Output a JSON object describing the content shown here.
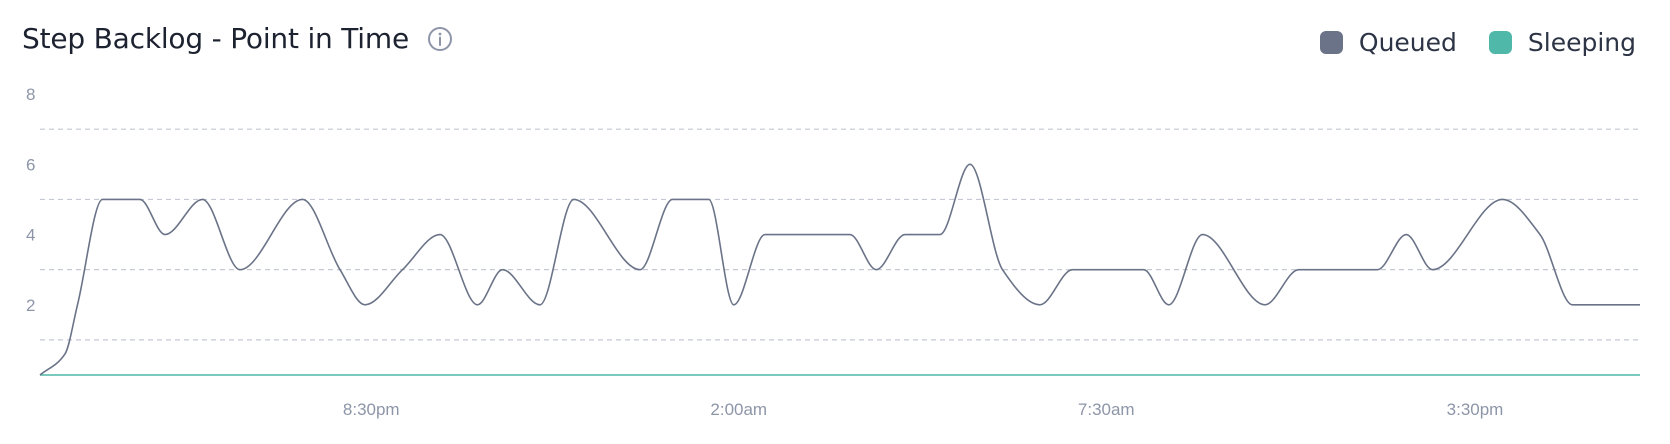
{
  "header": {
    "title": "Step Backlog - Point in Time",
    "info_icon": "info-icon"
  },
  "legend": [
    {
      "label": "Queued",
      "color": "#6a7387"
    },
    {
      "label": "Sleeping",
      "color": "#4fb8a8"
    }
  ],
  "chart_data": {
    "type": "line",
    "title": "Step Backlog - Point in Time",
    "xlabel": "",
    "ylabel": "",
    "ylim": [
      0,
      8.8
    ],
    "xlim": [
      0,
      128
    ],
    "y_ticks": [
      2,
      4,
      6,
      8
    ],
    "x_ticks": [
      {
        "x": 26.5,
        "label": "8:30pm"
      },
      {
        "x": 55.9,
        "label": "2:00am"
      },
      {
        "x": 85.3,
        "label": "7:30am"
      },
      {
        "x": 114.8,
        "label": "3:30pm"
      }
    ],
    "grid": true,
    "legend_position": "top-right",
    "series": [
      {
        "name": "Queued",
        "color": "#6a7387",
        "points": [
          [
            0,
            0
          ],
          [
            2,
            0.6
          ],
          [
            3,
            2
          ],
          [
            5,
            5
          ],
          [
            8,
            5
          ],
          [
            10,
            4
          ],
          [
            13,
            5
          ],
          [
            16,
            3
          ],
          [
            21,
            5
          ],
          [
            24,
            3
          ],
          [
            26,
            2
          ],
          [
            29,
            3
          ],
          [
            32,
            4
          ],
          [
            35,
            2
          ],
          [
            37,
            3
          ],
          [
            40,
            2
          ],
          [
            42.7,
            5
          ],
          [
            48,
            3
          ],
          [
            50.6,
            5
          ],
          [
            53.5,
            5
          ],
          [
            55.5,
            2
          ],
          [
            58,
            4
          ],
          [
            64.8,
            4
          ],
          [
            66.9,
            3
          ],
          [
            69.2,
            4
          ],
          [
            72,
            4
          ],
          [
            74.4,
            6
          ],
          [
            77,
            3
          ],
          [
            80,
            2
          ],
          [
            82.6,
            3
          ],
          [
            88.3,
            3
          ],
          [
            90.3,
            2
          ],
          [
            93,
            4
          ],
          [
            98,
            2
          ],
          [
            100.7,
            3
          ],
          [
            107,
            3
          ],
          [
            109.3,
            4
          ],
          [
            111.4,
            3
          ],
          [
            117,
            5
          ],
          [
            120,
            4
          ],
          [
            122.6,
            2
          ],
          [
            128,
            2
          ]
        ]
      },
      {
        "name": "Sleeping",
        "color": "#4fb8a8",
        "points": [
          [
            0,
            0
          ],
          [
            128,
            0
          ]
        ]
      }
    ]
  }
}
